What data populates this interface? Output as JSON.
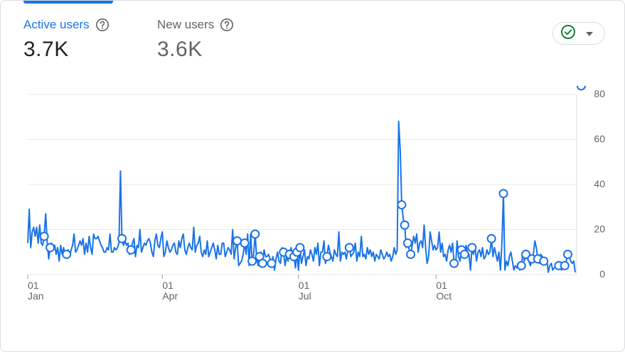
{
  "metrics": [
    {
      "label": "Active users",
      "value": "3.7K"
    },
    {
      "label": "New users",
      "value": "3.6K"
    }
  ],
  "colors": {
    "accent": "#1a73e8",
    "line": "#1a73e8",
    "grid": "#e8eaed",
    "status_ok": "#188038"
  },
  "status_button": {
    "icon": "check-circle-icon",
    "dropdown_icon": "caret-down-icon"
  },
  "chart_data": {
    "type": "line",
    "title": "",
    "xlabel": "",
    "ylabel": "",
    "ylim": [
      0,
      80
    ],
    "y_ticks": [
      "0",
      "20",
      "40",
      "60",
      "80"
    ],
    "x_ticks": [
      {
        "day": "01",
        "month": "Jan",
        "index": 0
      },
      {
        "day": "01",
        "month": "Apr",
        "index": 90
      },
      {
        "day": "01",
        "month": "Jul",
        "index": 181
      },
      {
        "day": "01",
        "month": "Oct",
        "index": 273
      }
    ],
    "grid": true,
    "series": [
      {
        "name": "Active users",
        "values": [
          14,
          29,
          12,
          19,
          21,
          17,
          21,
          14,
          22,
          14,
          13,
          17,
          27,
          15,
          7,
          12,
          14,
          11,
          13,
          9,
          12,
          6,
          13,
          9,
          12,
          8,
          9,
          11,
          8,
          11,
          13,
          18,
          10,
          11,
          13,
          15,
          13,
          16,
          9,
          14,
          10,
          17,
          12,
          9,
          18,
          16,
          16,
          17,
          15,
          13,
          12,
          10,
          10,
          12,
          11,
          18,
          10,
          10,
          12,
          11,
          12,
          14,
          46,
          16,
          13,
          15,
          13,
          14,
          9,
          11,
          14,
          16,
          8,
          13,
          12,
          20,
          10,
          12,
          14,
          13,
          15,
          16,
          14,
          10,
          8,
          15,
          18,
          13,
          12,
          16,
          19,
          8,
          10,
          15,
          12,
          10,
          11,
          13,
          14,
          10,
          9,
          15,
          12,
          16,
          18,
          11,
          9,
          12,
          14,
          12,
          11,
          21,
          10,
          13,
          14,
          17,
          10,
          8,
          11,
          9,
          15,
          8,
          10,
          12,
          14,
          11,
          7,
          13,
          9,
          9,
          14,
          14,
          8,
          10,
          12,
          11,
          9,
          20,
          7,
          12,
          15,
          4,
          5,
          6,
          9,
          14,
          9,
          18,
          4,
          18,
          6,
          9,
          18,
          8,
          4,
          8,
          10,
          5,
          11,
          8,
          8,
          9,
          7,
          5,
          8,
          2,
          7,
          10,
          6,
          5,
          12,
          10,
          4,
          8,
          6,
          9,
          12,
          9,
          8,
          3,
          10,
          2,
          12,
          5,
          8,
          11,
          4,
          8,
          7,
          11,
          9,
          6,
          12,
          9,
          14,
          4,
          10,
          10,
          15,
          5,
          8,
          13,
          10,
          8,
          6,
          11,
          9,
          8,
          19,
          6,
          10,
          9,
          10,
          7,
          11,
          12,
          8,
          9,
          10,
          14,
          6,
          10,
          8,
          17,
          8,
          9,
          7,
          12,
          9,
          11,
          8,
          10,
          6,
          9,
          8,
          7,
          11,
          9,
          7,
          8,
          10,
          8,
          9,
          6,
          8,
          12,
          9,
          11,
          68,
          55,
          31,
          25,
          22,
          12,
          14,
          11,
          9,
          13,
          17,
          14,
          18,
          10,
          14,
          15,
          12,
          22,
          12,
          5,
          8,
          19,
          15,
          11,
          13,
          11,
          12,
          19,
          10,
          14,
          8,
          9,
          6,
          11,
          13,
          10,
          14,
          5,
          4,
          15,
          8,
          6,
          11,
          8,
          9,
          13,
          10,
          9,
          2,
          12,
          9,
          13,
          6,
          10,
          11,
          8,
          12,
          7,
          8,
          11,
          9,
          10,
          16,
          8,
          12,
          9,
          6,
          10,
          2,
          14,
          36,
          2,
          6,
          4,
          8,
          10,
          6,
          2,
          4,
          3,
          4,
          2,
          4,
          10,
          6,
          9,
          7,
          6,
          4,
          7,
          9,
          15,
          12,
          7,
          5,
          9,
          8,
          6,
          5,
          7,
          1,
          4,
          5,
          2,
          3,
          3,
          4,
          4,
          3,
          2,
          5,
          4,
          6,
          9,
          8,
          6,
          5,
          6,
          1
        ],
        "markers": [
          11,
          15,
          26,
          63,
          69,
          140,
          145,
          150,
          152,
          155,
          157,
          163,
          171,
          175,
          178,
          180,
          182,
          200,
          215,
          250,
          252,
          254,
          256,
          285,
          290,
          292,
          297,
          310,
          318,
          330,
          333,
          337,
          341,
          345,
          355,
          359,
          361,
          370
        ]
      }
    ]
  }
}
